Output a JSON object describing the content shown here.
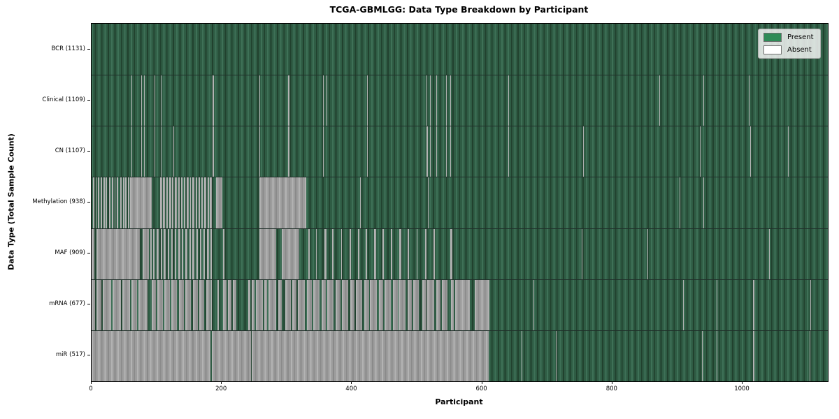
{
  "title": "TCGA-GBMLGG: Data Type Breakdown by Participant",
  "axes": {
    "xlabel": "Participant",
    "ylabel": "Data Type (Total Sample Count)"
  },
  "legend": {
    "items": [
      {
        "label": "Present",
        "state": "present"
      },
      {
        "label": "Absent",
        "state": "absent"
      }
    ]
  },
  "colors": {
    "present_swatch": "#2e8b57",
    "absent_swatch": "#ffffff",
    "present_bar_light": "#3e7157",
    "present_bar_mid": "#2f5c44",
    "present_bar_dark": "#21412e",
    "absent_bar_light": "#b3b3b3",
    "absent_bar_mid": "#9d9d9d",
    "absent_bar_dark": "#8a8a8a",
    "frame": "#000000",
    "background": "#ffffff"
  },
  "chart_data": {
    "type": "heatmap",
    "title": "TCGA-GBMLGG: Data Type Breakdown by Participant",
    "xlabel": "Participant",
    "ylabel": "Data Type (Total Sample Count)",
    "x_range": [
      0,
      1131
    ],
    "x_ticks": [
      0,
      200,
      400,
      600,
      800,
      1000
    ],
    "legend": [
      "Present",
      "Absent"
    ],
    "cell_states": {
      "present": "green",
      "absent": "white"
    },
    "note_encoding": "absent_runs are [start,end) participant index ranges where data is absent; all other participants are present",
    "rows": [
      {
        "name": "BCR",
        "label": "BCR (1131)",
        "present_count": 1131,
        "absent_runs": []
      },
      {
        "name": "Clinical",
        "label": "Clinical (1109)",
        "present_count": 1109,
        "absent_runs": [
          [
            61,
            62
          ],
          [
            76,
            77
          ],
          [
            81,
            82
          ],
          [
            97,
            98
          ],
          [
            106,
            107
          ],
          [
            186,
            188
          ],
          [
            258,
            259
          ],
          [
            302,
            304
          ],
          [
            356,
            357
          ],
          [
            361,
            362
          ],
          [
            423,
            424
          ],
          [
            515,
            516
          ],
          [
            520,
            521
          ],
          [
            529,
            530
          ],
          [
            545,
            546
          ],
          [
            551,
            552
          ],
          [
            640,
            641
          ],
          [
            872,
            873
          ],
          [
            940,
            941
          ],
          [
            1010,
            1011
          ]
        ]
      },
      {
        "name": "CN",
        "label": "CN (1107)",
        "present_count": 1107,
        "absent_runs": [
          [
            61,
            62
          ],
          [
            76,
            77
          ],
          [
            81,
            82
          ],
          [
            97,
            98
          ],
          [
            106,
            107
          ],
          [
            126,
            127
          ],
          [
            186,
            188
          ],
          [
            258,
            259
          ],
          [
            302,
            304
          ],
          [
            356,
            357
          ],
          [
            423,
            424
          ],
          [
            515,
            517
          ],
          [
            520,
            521
          ],
          [
            529,
            530
          ],
          [
            545,
            546
          ],
          [
            551,
            552
          ],
          [
            640,
            641
          ],
          [
            755,
            756
          ],
          [
            934,
            935
          ],
          [
            1012,
            1013
          ],
          [
            1070,
            1071
          ]
        ]
      },
      {
        "name": "Methylation",
        "label": "Methylation (938)",
        "present_count": 938,
        "absent_runs": [
          [
            2,
            4
          ],
          [
            6,
            8
          ],
          [
            10,
            12
          ],
          [
            14,
            16
          ],
          [
            18,
            20
          ],
          [
            22,
            24
          ],
          [
            27,
            29
          ],
          [
            31,
            33
          ],
          [
            35,
            37
          ],
          [
            39,
            41
          ],
          [
            44,
            46
          ],
          [
            48,
            50
          ],
          [
            52,
            54
          ],
          [
            56,
            58
          ],
          [
            59,
            92
          ],
          [
            105,
            108
          ],
          [
            110,
            113
          ],
          [
            115,
            117
          ],
          [
            119,
            122
          ],
          [
            124,
            126
          ],
          [
            128,
            131
          ],
          [
            133,
            135
          ],
          [
            137,
            140
          ],
          [
            142,
            144
          ],
          [
            146,
            149
          ],
          [
            151,
            153
          ],
          [
            155,
            158
          ],
          [
            160,
            162
          ],
          [
            164,
            167
          ],
          [
            169,
            171
          ],
          [
            173,
            176
          ],
          [
            178,
            180
          ],
          [
            182,
            185
          ],
          [
            191,
            201
          ],
          [
            258,
            330
          ],
          [
            412,
            413
          ],
          [
            517,
            518
          ],
          [
            903,
            904
          ],
          [
            940,
            941
          ]
        ]
      },
      {
        "name": "MAF",
        "label": "MAF (909)",
        "present_count": 909,
        "absent_runs": [
          [
            0,
            4
          ],
          [
            7,
            74
          ],
          [
            78,
            88
          ],
          [
            90,
            92
          ],
          [
            95,
            97
          ],
          [
            100,
            103
          ],
          [
            106,
            108
          ],
          [
            111,
            114
          ],
          [
            117,
            119
          ],
          [
            122,
            125
          ],
          [
            128,
            130
          ],
          [
            133,
            136
          ],
          [
            139,
            141
          ],
          [
            144,
            147
          ],
          [
            150,
            152
          ],
          [
            155,
            158
          ],
          [
            161,
            163
          ],
          [
            166,
            169
          ],
          [
            172,
            174
          ],
          [
            177,
            180
          ],
          [
            183,
            185
          ],
          [
            202,
            204
          ],
          [
            258,
            284
          ],
          [
            292,
            319
          ],
          [
            333,
            335
          ],
          [
            345,
            346
          ],
          [
            358,
            361
          ],
          [
            370,
            372
          ],
          [
            383,
            385
          ],
          [
            396,
            399
          ],
          [
            409,
            411
          ],
          [
            421,
            423
          ],
          [
            434,
            437
          ],
          [
            447,
            449
          ],
          [
            460,
            462
          ],
          [
            473,
            476
          ],
          [
            486,
            488
          ],
          [
            499,
            501
          ],
          [
            512,
            515
          ],
          [
            525,
            527
          ],
          [
            551,
            554
          ],
          [
            753,
            754
          ],
          [
            854,
            855
          ],
          [
            1041,
            1042
          ]
        ]
      },
      {
        "name": "mRNA",
        "label": "mRNA (677)",
        "present_count": 677,
        "absent_runs": [
          [
            0,
            5
          ],
          [
            7,
            15
          ],
          [
            17,
            30
          ],
          [
            32,
            45
          ],
          [
            47,
            59
          ],
          [
            61,
            70
          ],
          [
            72,
            86
          ],
          [
            92,
            99
          ],
          [
            101,
            110
          ],
          [
            112,
            120
          ],
          [
            122,
            131
          ],
          [
            134,
            142
          ],
          [
            144,
            153
          ],
          [
            156,
            163
          ],
          [
            165,
            173
          ],
          [
            176,
            181
          ],
          [
            183,
            185
          ],
          [
            193,
            196
          ],
          [
            202,
            207
          ],
          [
            209,
            215
          ],
          [
            217,
            222
          ],
          [
            241,
            244
          ],
          [
            246,
            250
          ],
          [
            252,
            263
          ],
          [
            265,
            270
          ],
          [
            272,
            284
          ],
          [
            287,
            292
          ],
          [
            297,
            306
          ],
          [
            308,
            315
          ],
          [
            317,
            328
          ],
          [
            331,
            338
          ],
          [
            340,
            350
          ],
          [
            353,
            360
          ],
          [
            362,
            372
          ],
          [
            375,
            382
          ],
          [
            384,
            394
          ],
          [
            397,
            404
          ],
          [
            406,
            416
          ],
          [
            419,
            426
          ],
          [
            428,
            438
          ],
          [
            441,
            448
          ],
          [
            450,
            460
          ],
          [
            463,
            470
          ],
          [
            472,
            482
          ],
          [
            485,
            492
          ],
          [
            494,
            503
          ],
          [
            508,
            514
          ],
          [
            516,
            526
          ],
          [
            529,
            536
          ],
          [
            538,
            547
          ],
          [
            552,
            556
          ],
          [
            558,
            581
          ],
          [
            589,
            611
          ],
          [
            679,
            680
          ],
          [
            909,
            910
          ],
          [
            960,
            961
          ],
          [
            1016,
            1018
          ],
          [
            1104,
            1105
          ]
        ]
      },
      {
        "name": "miR",
        "label": "miR (517)",
        "present_count": 517,
        "absent_runs": [
          [
            0,
            183
          ],
          [
            185,
            245
          ],
          [
            246,
            610
          ],
          [
            661,
            662
          ],
          [
            713,
            714
          ],
          [
            938,
            939
          ],
          [
            960,
            961
          ],
          [
            1016,
            1018
          ],
          [
            1103,
            1104
          ]
        ]
      }
    ]
  }
}
